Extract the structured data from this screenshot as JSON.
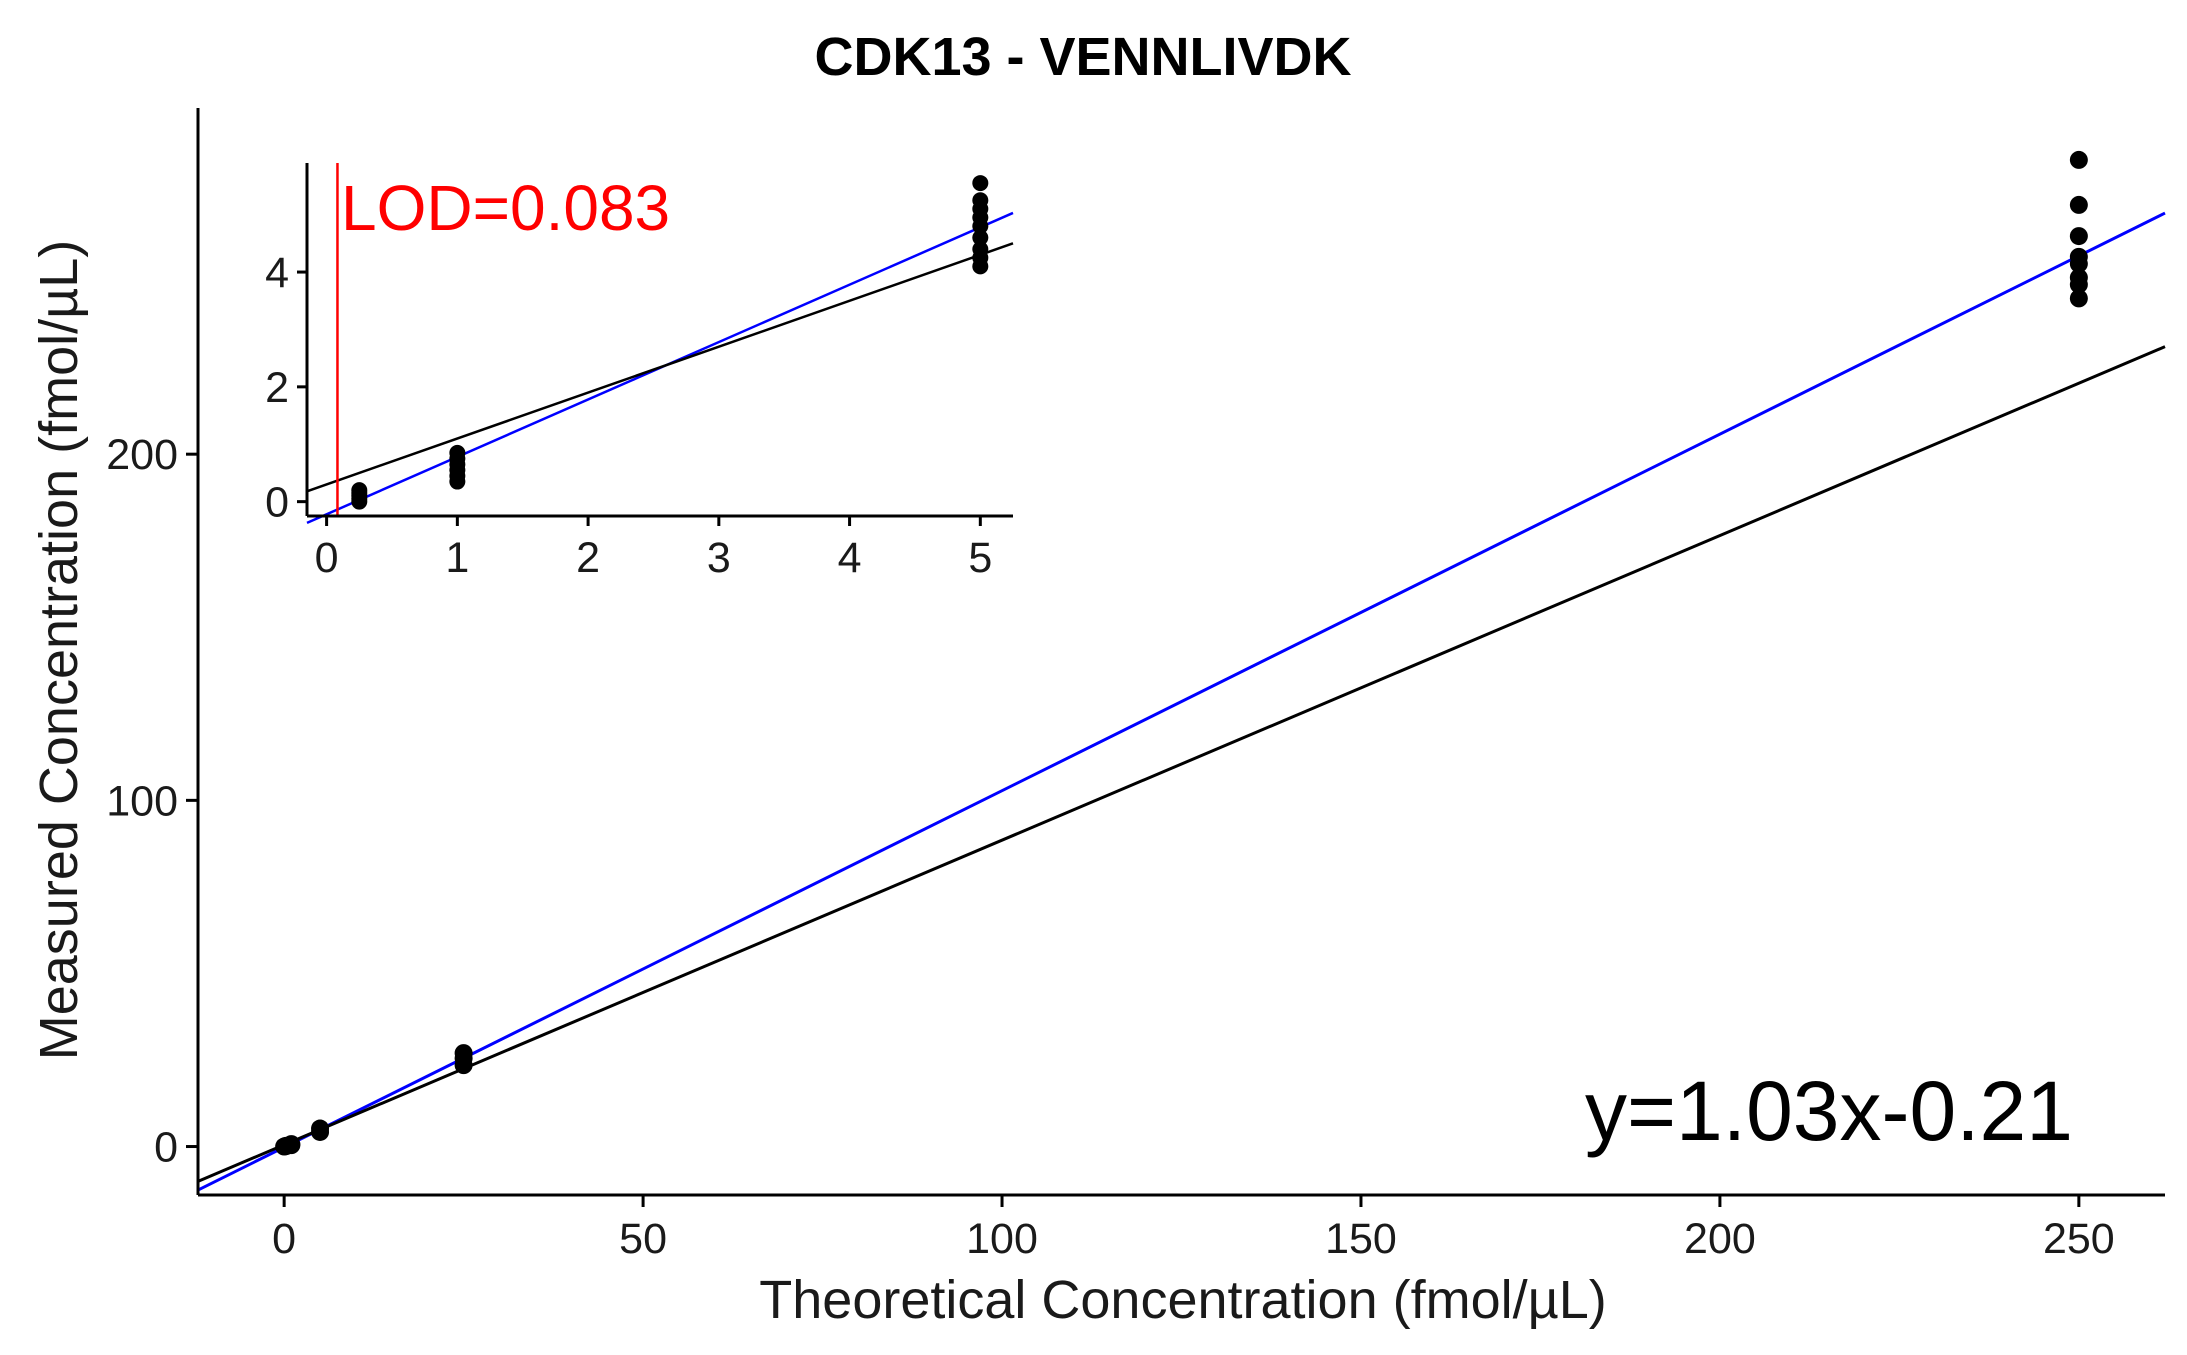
{
  "chart_data": {
    "type": "scatter",
    "title": "CDK13 - VENNLIVDK",
    "xlabel": "Theoretical Concentration (fmol/µL)",
    "ylabel": "Measured Concentration (fmol/µL)",
    "annotation_equation": "y=1.03x-0.21",
    "xlim": [
      -12,
      262
    ],
    "ylim": [
      -14,
      300
    ],
    "xticks": [
      0,
      50,
      100,
      150,
      200,
      250
    ],
    "yticks": [
      0,
      100,
      200
    ],
    "grid": false,
    "points": [
      {
        "x": 0,
        "y": 0
      },
      {
        "x": 0.25,
        "y": 0.1
      },
      {
        "x": 0.25,
        "y": 0.2
      },
      {
        "x": 1,
        "y": 0.4
      },
      {
        "x": 1,
        "y": 0.7
      },
      {
        "x": 5,
        "y": 4.2
      },
      {
        "x": 5,
        "y": 5.2
      },
      {
        "x": 25,
        "y": 23.5
      },
      {
        "x": 25,
        "y": 25.5
      },
      {
        "x": 25,
        "y": 27
      },
      {
        "x": 250,
        "y": 245
      },
      {
        "x": 250,
        "y": 249
      },
      {
        "x": 250,
        "y": 251
      },
      {
        "x": 250,
        "y": 255
      },
      {
        "x": 250,
        "y": 257
      },
      {
        "x": 250,
        "y": 263
      },
      {
        "x": 250,
        "y": 272
      },
      {
        "x": 250,
        "y": 285
      }
    ],
    "lines": [
      {
        "color": "#0000ff",
        "slope": 1.03,
        "intercept": -0.21
      },
      {
        "color": "#000000",
        "slope": 0.88,
        "intercept": 0.5
      }
    ],
    "inset": {
      "lod_label": "LOD=0.083",
      "lod_value": 0.083,
      "lod_color": "#ff0000",
      "xlim": [
        -0.15,
        5.25
      ],
      "ylim": [
        -0.25,
        5.9
      ],
      "xticks": [
        0,
        1,
        2,
        3,
        4,
        5
      ],
      "yticks": [
        0,
        2,
        4
      ],
      "points": [
        {
          "x": 0.25,
          "y": 0.0
        },
        {
          "x": 0.25,
          "y": 0.05
        },
        {
          "x": 0.25,
          "y": 0.1
        },
        {
          "x": 0.25,
          "y": 0.15
        },
        {
          "x": 0.25,
          "y": 0.2
        },
        {
          "x": 1,
          "y": 0.35
        },
        {
          "x": 1,
          "y": 0.45
        },
        {
          "x": 1,
          "y": 0.55
        },
        {
          "x": 1,
          "y": 0.65
        },
        {
          "x": 1,
          "y": 0.75
        },
        {
          "x": 1,
          "y": 0.85
        },
        {
          "x": 5,
          "y": 4.1
        },
        {
          "x": 5,
          "y": 4.25
        },
        {
          "x": 5,
          "y": 4.4
        },
        {
          "x": 5,
          "y": 4.6
        },
        {
          "x": 5,
          "y": 4.8
        },
        {
          "x": 5,
          "y": 4.95
        },
        {
          "x": 5,
          "y": 5.1
        },
        {
          "x": 5,
          "y": 5.25
        },
        {
          "x": 5,
          "y": 5.55
        }
      ],
      "lines": [
        {
          "color": "#0000ff",
          "slope": 1.0,
          "intercept": -0.22
        },
        {
          "color": "#000000",
          "slope": 0.8,
          "intercept": 0.3
        }
      ]
    }
  }
}
